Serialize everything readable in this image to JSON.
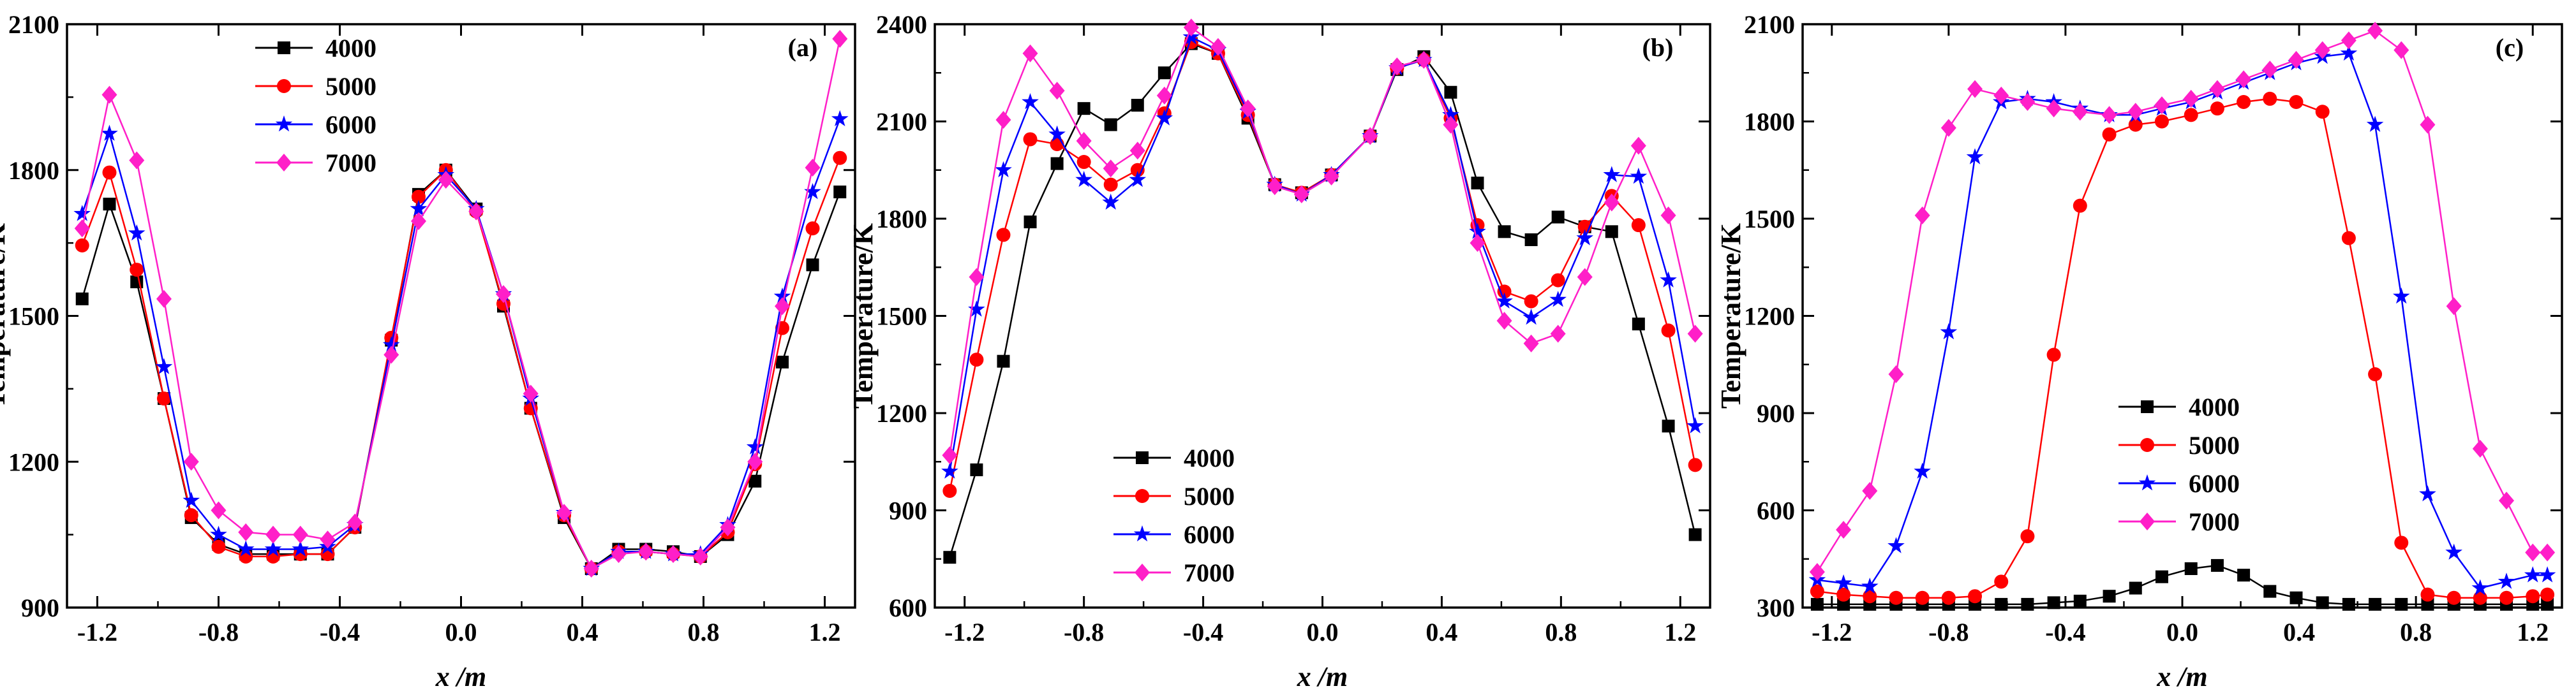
{
  "colors": {
    "4000": "#000000",
    "5000": "#ff0000",
    "6000": "#0000ff",
    "7000": "#ff1fc8",
    "axis": "#000000"
  },
  "markers": {
    "4000": "square",
    "5000": "circle",
    "6000": "star",
    "7000": "diamond"
  },
  "chart_data": [
    {
      "id": "a",
      "type": "line",
      "panel_label": "(a)",
      "xlabel": "x /m",
      "ylabel": "Temperature/K",
      "xlim": [
        -1.3,
        1.3
      ],
      "ylim": [
        900,
        2100
      ],
      "xticks": [
        -1.2,
        -0.8,
        -0.4,
        0.0,
        0.4,
        0.8,
        1.2
      ],
      "xtick_labels": [
        "-1.2",
        "-0.8",
        "-0.4",
        "0.0",
        "0.4",
        "0.8",
        "1.2"
      ],
      "yticks": [
        900,
        1200,
        1500,
        1800,
        2100
      ],
      "ytick_labels": [
        "900",
        "1200",
        "1500",
        "1800",
        "2100"
      ],
      "legend_position": "top-left",
      "x": [
        -1.25,
        -1.16,
        -1.07,
        -0.98,
        -0.89,
        -0.8,
        -0.71,
        -0.62,
        -0.53,
        -0.44,
        -0.35,
        -0.23,
        -0.14,
        -0.05,
        0.05,
        0.14,
        0.23,
        0.34,
        0.43,
        0.52,
        0.61,
        0.7,
        0.79,
        0.88,
        0.97,
        1.06,
        1.16,
        1.25
      ],
      "series": [
        {
          "name": "4000",
          "values": [
            1535,
            1730,
            1570,
            1330,
            1085,
            1030,
            1010,
            1010,
            1010,
            1010,
            1065,
            1450,
            1750,
            1800,
            1720,
            1520,
            1310,
            1085,
            980,
            1020,
            1020,
            1015,
            1005,
            1050,
            1160,
            1405,
            1605,
            1755
          ]
        },
        {
          "name": "5000",
          "values": [
            1645,
            1795,
            1595,
            1330,
            1090,
            1025,
            1005,
            1005,
            1010,
            1010,
            1065,
            1455,
            1745,
            1800,
            1715,
            1525,
            1310,
            1090,
            980,
            1015,
            1015,
            1010,
            1005,
            1055,
            1195,
            1475,
            1680,
            1825
          ]
        },
        {
          "name": "6000",
          "values": [
            1710,
            1875,
            1670,
            1395,
            1120,
            1050,
            1020,
            1020,
            1020,
            1025,
            1070,
            1440,
            1720,
            1790,
            1720,
            1545,
            1330,
            1095,
            980,
            1015,
            1015,
            1010,
            1010,
            1070,
            1230,
            1540,
            1755,
            1905
          ]
        },
        {
          "name": "7000",
          "values": [
            1680,
            1955,
            1820,
            1535,
            1200,
            1100,
            1055,
            1050,
            1050,
            1040,
            1075,
            1420,
            1695,
            1780,
            1715,
            1545,
            1340,
            1095,
            980,
            1010,
            1015,
            1010,
            1005,
            1065,
            1200,
            1520,
            1805,
            2070
          ]
        }
      ]
    },
    {
      "id": "b",
      "type": "line",
      "panel_label": "(b)",
      "xlabel": "x /m",
      "ylabel": "Temperature/K",
      "xlim": [
        -1.3,
        1.3
      ],
      "ylim": [
        600,
        2400
      ],
      "xticks": [
        -1.2,
        -0.8,
        -0.4,
        0.0,
        0.4,
        0.8,
        1.2
      ],
      "xtick_labels": [
        "-1.2",
        "-0.8",
        "-0.4",
        "0.0",
        "0.4",
        "0.8",
        "1.2"
      ],
      "yticks": [
        600,
        900,
        1200,
        1500,
        1800,
        2100,
        2400
      ],
      "ytick_labels": [
        "600",
        "900",
        "1200",
        "1500",
        "1800",
        "2100",
        "2400"
      ],
      "legend_position": "bottom-left",
      "x": [
        -1.25,
        -1.16,
        -1.07,
        -0.98,
        -0.89,
        -0.8,
        -0.71,
        -0.62,
        -0.53,
        -0.44,
        -0.35,
        -0.25,
        -0.16,
        -0.07,
        0.03,
        0.16,
        0.25,
        0.34,
        0.43,
        0.52,
        0.61,
        0.7,
        0.79,
        0.88,
        0.97,
        1.06,
        1.16,
        1.25
      ],
      "series": [
        {
          "name": "4000",
          "values": [
            755,
            1025,
            1360,
            1790,
            1970,
            2140,
            2090,
            2150,
            2250,
            2340,
            2310,
            2110,
            1905,
            1880,
            1935,
            2055,
            2260,
            2300,
            2190,
            1910,
            1760,
            1735,
            1805,
            1775,
            1760,
            1475,
            1160,
            825
          ]
        },
        {
          "name": "5000",
          "values": [
            960,
            1365,
            1750,
            2045,
            2030,
            1975,
            1905,
            1950,
            2125,
            2345,
            2310,
            2120,
            1905,
            1880,
            1935,
            2055,
            2265,
            2290,
            2110,
            1780,
            1575,
            1545,
            1610,
            1775,
            1870,
            1780,
            1455,
            1040
          ]
        },
        {
          "name": "6000",
          "values": [
            1020,
            1520,
            1950,
            2160,
            2060,
            1920,
            1850,
            1920,
            2110,
            2360,
            2320,
            2130,
            1905,
            1875,
            1935,
            2055,
            2265,
            2290,
            2120,
            1760,
            1545,
            1495,
            1550,
            1740,
            1935,
            1930,
            1610,
            1160
          ]
        },
        {
          "name": "7000",
          "values": [
            1070,
            1620,
            2105,
            2310,
            2195,
            2040,
            1955,
            2010,
            2180,
            2390,
            2330,
            2140,
            1900,
            1875,
            1930,
            2055,
            2270,
            2290,
            2090,
            1725,
            1485,
            1415,
            1445,
            1620,
            1850,
            2025,
            1810,
            1445
          ]
        }
      ]
    },
    {
      "id": "c",
      "type": "line",
      "panel_label": "(c)",
      "xlabel": "x /m",
      "ylabel": "Temperature/K",
      "xlim": [
        -1.3,
        1.3
      ],
      "ylim": [
        300,
        2100
      ],
      "xticks": [
        -1.2,
        -0.8,
        -0.4,
        0.0,
        0.4,
        0.8,
        1.2
      ],
      "xtick_labels": [
        "-1.2",
        "-0.8",
        "-0.4",
        "0.0",
        "0.4",
        "0.8",
        "1.2"
      ],
      "yticks": [
        300,
        600,
        900,
        1200,
        1500,
        1800,
        2100
      ],
      "ytick_labels": [
        "300",
        "600",
        "900",
        "1200",
        "1500",
        "1800",
        "2100"
      ],
      "legend_position": "center-left",
      "x": [
        -1.25,
        -1.16,
        -1.07,
        -0.98,
        -0.89,
        -0.8,
        -0.71,
        -0.62,
        -0.53,
        -0.44,
        -0.35,
        -0.25,
        -0.16,
        -0.07,
        0.03,
        0.12,
        0.21,
        0.3,
        0.39,
        0.48,
        0.57,
        0.66,
        0.75,
        0.84,
        0.93,
        1.02,
        1.11,
        1.2,
        1.25
      ],
      "series": [
        {
          "name": "4000",
          "values": [
            310,
            310,
            310,
            310,
            310,
            310,
            310,
            310,
            310,
            315,
            320,
            335,
            360,
            395,
            420,
            430,
            400,
            350,
            330,
            315,
            310,
            310,
            310,
            310,
            310,
            310,
            310,
            310,
            310
          ]
        },
        {
          "name": "5000",
          "values": [
            350,
            340,
            335,
            330,
            330,
            330,
            335,
            380,
            520,
            1080,
            1540,
            1760,
            1790,
            1800,
            1820,
            1840,
            1860,
            1870,
            1860,
            1830,
            1440,
            1020,
            500,
            340,
            330,
            330,
            330,
            335,
            340
          ]
        },
        {
          "name": "6000",
          "values": [
            385,
            375,
            365,
            490,
            720,
            1150,
            1690,
            1860,
            1870,
            1860,
            1840,
            1820,
            1820,
            1840,
            1860,
            1890,
            1920,
            1950,
            1980,
            2000,
            2010,
            1790,
            1260,
            650,
            470,
            360,
            380,
            400,
            400
          ]
        },
        {
          "name": "7000",
          "values": [
            410,
            540,
            660,
            1020,
            1510,
            1780,
            1900,
            1880,
            1860,
            1840,
            1830,
            1820,
            1830,
            1850,
            1870,
            1900,
            1930,
            1960,
            1990,
            2020,
            2050,
            2080,
            2020,
            1790,
            1230,
            790,
            630,
            470,
            470
          ]
        }
      ]
    }
  ],
  "legend": [
    "4000",
    "5000",
    "6000",
    "7000"
  ]
}
